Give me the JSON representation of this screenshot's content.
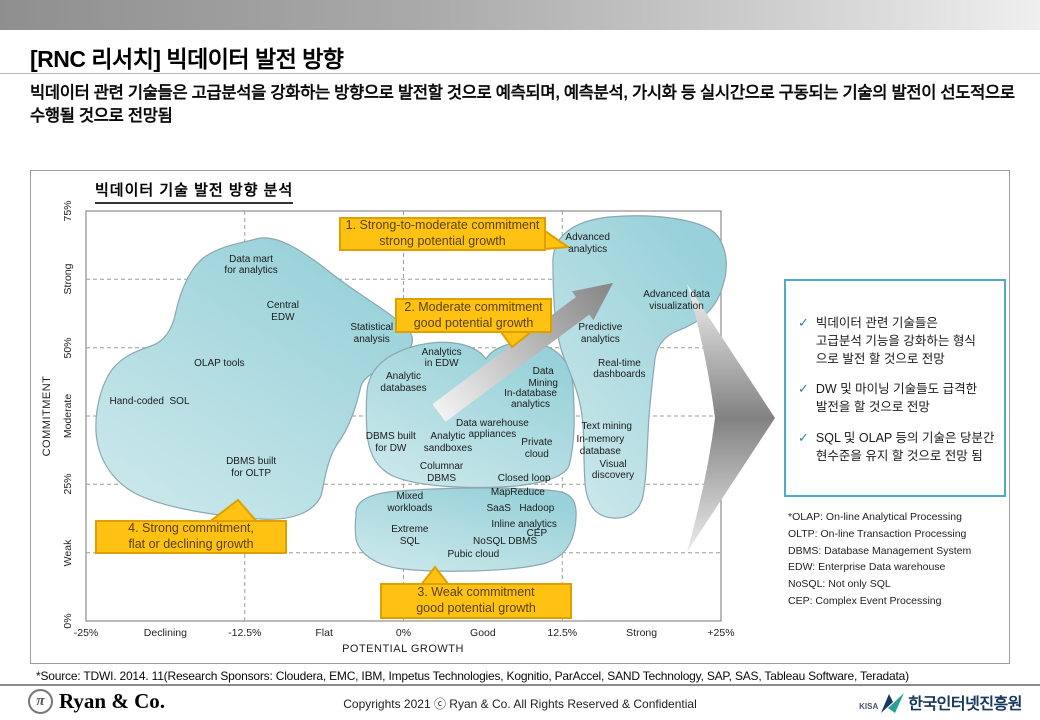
{
  "header": {
    "title": "[RNC 리서치] 빅데이터 발전 방향",
    "subtitle": "빅데이터 관련 기술들은 고급분석을 강화하는 방향으로 발전할 것으로 예측되며, 예측분석, 가시화 등 실시간으로 구동되는 기술의 발전이 선도적으로 수행될 것으로 전망됨"
  },
  "figure": {
    "chart_title": "빅데이터 기술 발전 방향 분석",
    "callouts": [
      {
        "text": "1. Strong-to-moderate commitment\nstrong potential growth"
      },
      {
        "text": "2. Moderate commitment\ngood potential growth"
      },
      {
        "text": "3. Weak commitment\ngood potential growth"
      },
      {
        "text": "4. Strong commitment,\nflat or declining growth"
      }
    ],
    "notes": [
      "빅데이터 관련 기술들은\n고급분석 기능을 강화하는 형식\n으로 발전 할 것으로 전망",
      "DW 및 마이닝 기술들도 급격한\n발전을 할 것으로 전망",
      "SQL 및 OLAP 등의 기술은 당분간\n현수준을 유지 할 것으로 전망 됨"
    ],
    "glossary": [
      "*OLAP: On-line Analytical Processing",
      "OLTP: On-line Transaction Processing",
      "DBMS: Database Management System",
      "EDW: Enterprise Data warehouse",
      "NoSQL: Not only SQL",
      "CEP: Complex Event Processing"
    ]
  },
  "chart_data": {
    "type": "scatter",
    "title": "빅데이터 기술 발전 방향 분석",
    "xlabel": "POTENTIAL GROWTH",
    "ylabel": "COMMITMENT",
    "x_ticks": [
      "-25%",
      "Declining",
      "-12.5%",
      "Flat",
      "0%",
      "Good",
      "12.5%",
      "Strong",
      "+25%"
    ],
    "y_ticks_bottom_to_top": [
      "0%",
      "Weak",
      "25%",
      "Moderate",
      "50%",
      "Strong",
      "75%"
    ],
    "x_range": [
      -25,
      25
    ],
    "y_range": [
      0,
      75
    ],
    "grid": "dashed; vertical gridlines at -12.5%/0%/12.5%, horizontal at Weak/25%/Moderate/50%/Strong",
    "points": [
      {
        "label": "Data mart\nfor analytics",
        "growth": -12,
        "commitment": 65
      },
      {
        "label": "Central\nEDW",
        "growth": -9.5,
        "commitment": 56.5
      },
      {
        "label": "Statistical\nanalysis",
        "growth": -2.5,
        "commitment": 52.5
      },
      {
        "label": "OLAP tools",
        "growth": -14.5,
        "commitment": 47
      },
      {
        "label": "Hand-coded  SOL",
        "growth": -20,
        "commitment": 40
      },
      {
        "label": "DBMS built\nfor OLTP",
        "growth": -12,
        "commitment": 28
      },
      {
        "label": "Analytics\nin EDW",
        "growth": 3,
        "commitment": 48
      },
      {
        "label": "Analytic\ndatabases",
        "growth": 0,
        "commitment": 43.5
      },
      {
        "label": "Data\nMining",
        "growth": 11,
        "commitment": 44.5
      },
      {
        "label": "In-database\nanalytics",
        "growth": 10,
        "commitment": 40.5
      },
      {
        "label": "Data warehouse\nappliances",
        "growth": 7,
        "commitment": 35
      },
      {
        "label": "DBMS built\nfor DW",
        "growth": -1,
        "commitment": 32.5
      },
      {
        "label": "Analytic\nsandboxes",
        "growth": 3.5,
        "commitment": 32.5
      },
      {
        "label": "Private\ncloud",
        "growth": 10.5,
        "commitment": 31.5
      },
      {
        "label": "Columnar\nDBMS",
        "growth": 3,
        "commitment": 27
      },
      {
        "label": "Closed loop",
        "growth": 9.5,
        "commitment": 26
      },
      {
        "label": "Mixed\nworkloads",
        "growth": 0.5,
        "commitment": 21.5
      },
      {
        "label": "MapReduce",
        "growth": 9,
        "commitment": 23.5
      },
      {
        "label": "SaaS",
        "growth": 7.5,
        "commitment": 20.5
      },
      {
        "label": "Hadoop",
        "growth": 10.5,
        "commitment": 20.5
      },
      {
        "label": "Inline analytics",
        "growth": 9.5,
        "commitment": 17.5
      },
      {
        "label": "CEP",
        "growth": 10.5,
        "commitment": 16
      },
      {
        "label": "NoSQL DBMS",
        "growth": 8,
        "commitment": 14.5
      },
      {
        "label": "Extreme\nSQL",
        "growth": 0.5,
        "commitment": 15.5
      },
      {
        "label": "Pubic cloud",
        "growth": 5.5,
        "commitment": 12
      },
      {
        "label": "Advanced\nanalytics",
        "growth": 14.5,
        "commitment": 69
      },
      {
        "label": "Advanced data\nvisualization",
        "growth": 21.5,
        "commitment": 58.5
      },
      {
        "label": "Predictive\nanalytics",
        "growth": 15.5,
        "commitment": 52.5
      },
      {
        "label": "Real-time\ndashboards",
        "growth": 17,
        "commitment": 46
      },
      {
        "label": "Text mining",
        "growth": 16,
        "commitment": 35.5
      },
      {
        "label": "In-memory\ndatabase",
        "growth": 15.5,
        "commitment": 32
      },
      {
        "label": "Visual\ndiscovery",
        "growth": 16.5,
        "commitment": 27.5
      }
    ]
  },
  "source": "*Source: TDWI. 2014. 11(Research Sponsors: Cloudera, EMC, IBM, Impetus Technologies, Kognitio, ParAccel, SAND Technology, SAP, SAS, Tableau Software, Teradata)",
  "footer": {
    "pi_symbol": "π",
    "brand": "Ryan & Co.",
    "copyright": "Copyrights 2021 ⓒ Ryan & Co. All Rights Reserved & Confidential",
    "kisa_small": "KISA",
    "kisa_name": "한국인터넷진흥원"
  },
  "colors": {
    "callout_fill": "#FFC212",
    "callout_border": "#DE9F00",
    "blob_teal_light": "#CFEAEC",
    "blob_teal_dark": "#98D1D9",
    "sidebar_border": "#4BACC6",
    "check": "#31849B",
    "kisa_navy": "#17375E",
    "kisa_teal": "#2AA198"
  }
}
